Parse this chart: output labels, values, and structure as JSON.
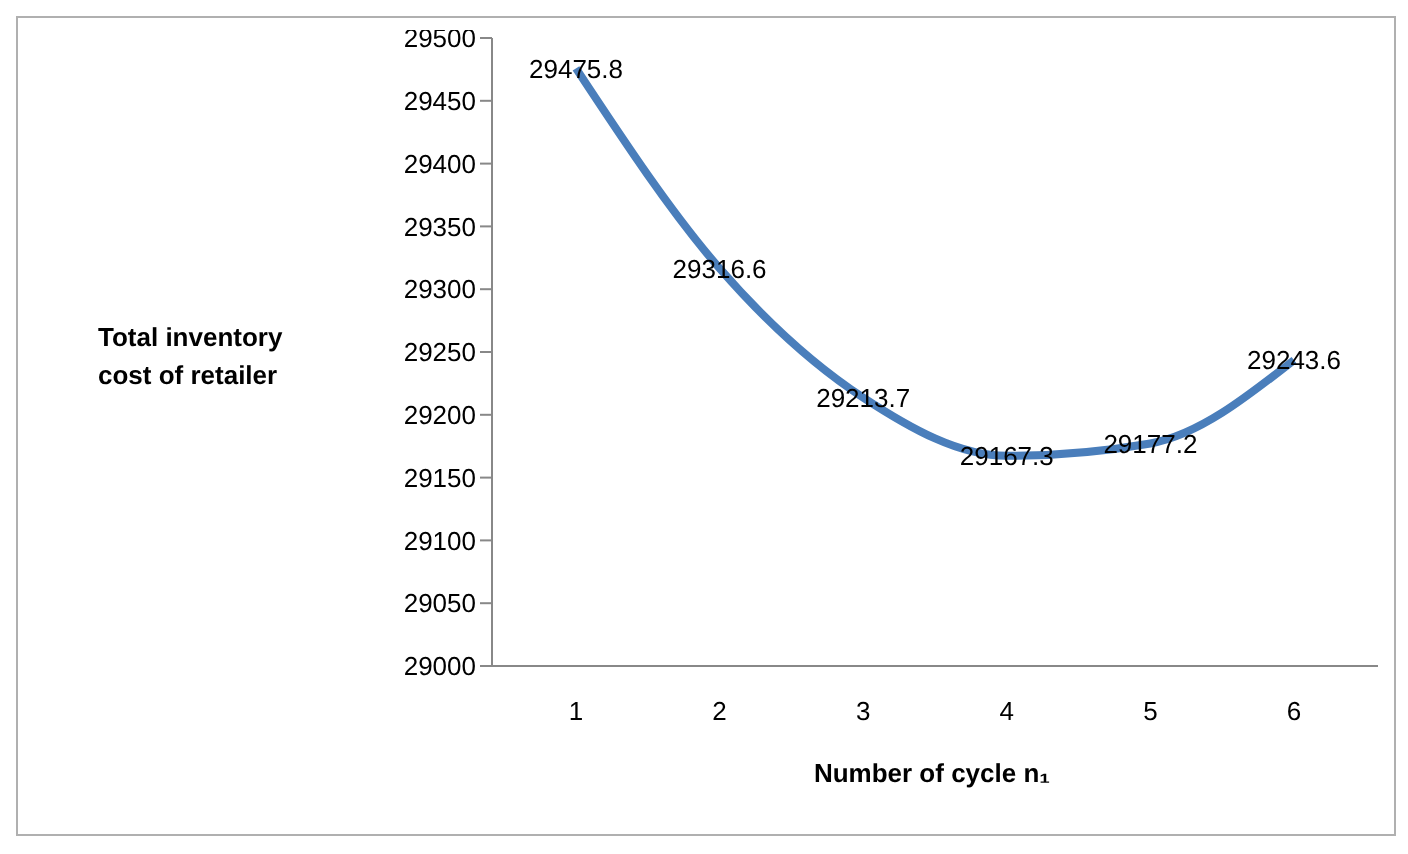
{
  "chart_data": {
    "type": "line",
    "xlabel": "Number of cycle n₁",
    "ylabel": "Total inventory cost of retailer",
    "categories": [
      "1",
      "2",
      "3",
      "4",
      "5",
      "6"
    ],
    "series": [
      {
        "color": "#4a7ebb",
        "values": [
          29475.8,
          29316.6,
          29213.7,
          29167.3,
          29177.2,
          29243.6
        ]
      }
    ],
    "ylim": [
      29000,
      29500
    ],
    "yticks": [
      29000,
      29050,
      29100,
      29150,
      29200,
      29250,
      29300,
      29350,
      29400,
      29450,
      29500
    ],
    "data_labels": true,
    "grid": false,
    "legend": false,
    "marker": "none",
    "line_style": "solid"
  }
}
